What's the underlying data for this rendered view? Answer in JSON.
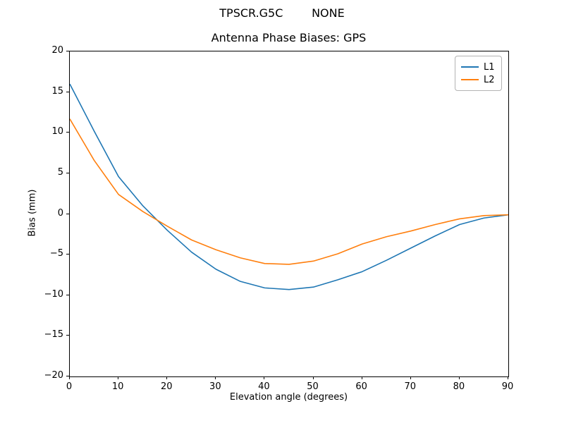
{
  "chart_data": {
    "type": "line",
    "suptitle": "TPSCR.G5C        NONE",
    "title": "Antenna Phase Biases: GPS",
    "xlabel": "Elevation angle (degrees)",
    "ylabel": "Bias (mm)",
    "xlim": [
      0,
      90
    ],
    "ylim": [
      -20,
      20
    ],
    "xticks": [
      "0",
      "10",
      "20",
      "30",
      "40",
      "50",
      "60",
      "70",
      "80",
      "90"
    ],
    "yticks": [
      "−20",
      "−15",
      "−10",
      "−5",
      "0",
      "5",
      "10",
      "15",
      "20"
    ],
    "grid": false,
    "legend_position": "upper right",
    "x": [
      0,
      5,
      10,
      15,
      20,
      25,
      30,
      35,
      40,
      45,
      50,
      55,
      60,
      65,
      70,
      75,
      80,
      85,
      90
    ],
    "series": [
      {
        "name": "L1",
        "color": "#1f77b4",
        "values": [
          16.0,
          10.2,
          4.6,
          1.0,
          -2.0,
          -4.7,
          -6.8,
          -8.3,
          -9.1,
          -9.3,
          -9.0,
          -8.1,
          -7.1,
          -5.7,
          -4.2,
          -2.7,
          -1.3,
          -0.5,
          -0.1
        ]
      },
      {
        "name": "L2",
        "color": "#ff7f0e",
        "values": [
          11.7,
          6.6,
          2.4,
          0.3,
          -1.5,
          -3.2,
          -4.4,
          -5.4,
          -6.1,
          -6.2,
          -5.8,
          -4.9,
          -3.7,
          -2.8,
          -2.1,
          -1.3,
          -0.6,
          -0.2,
          -0.1
        ]
      }
    ]
  }
}
